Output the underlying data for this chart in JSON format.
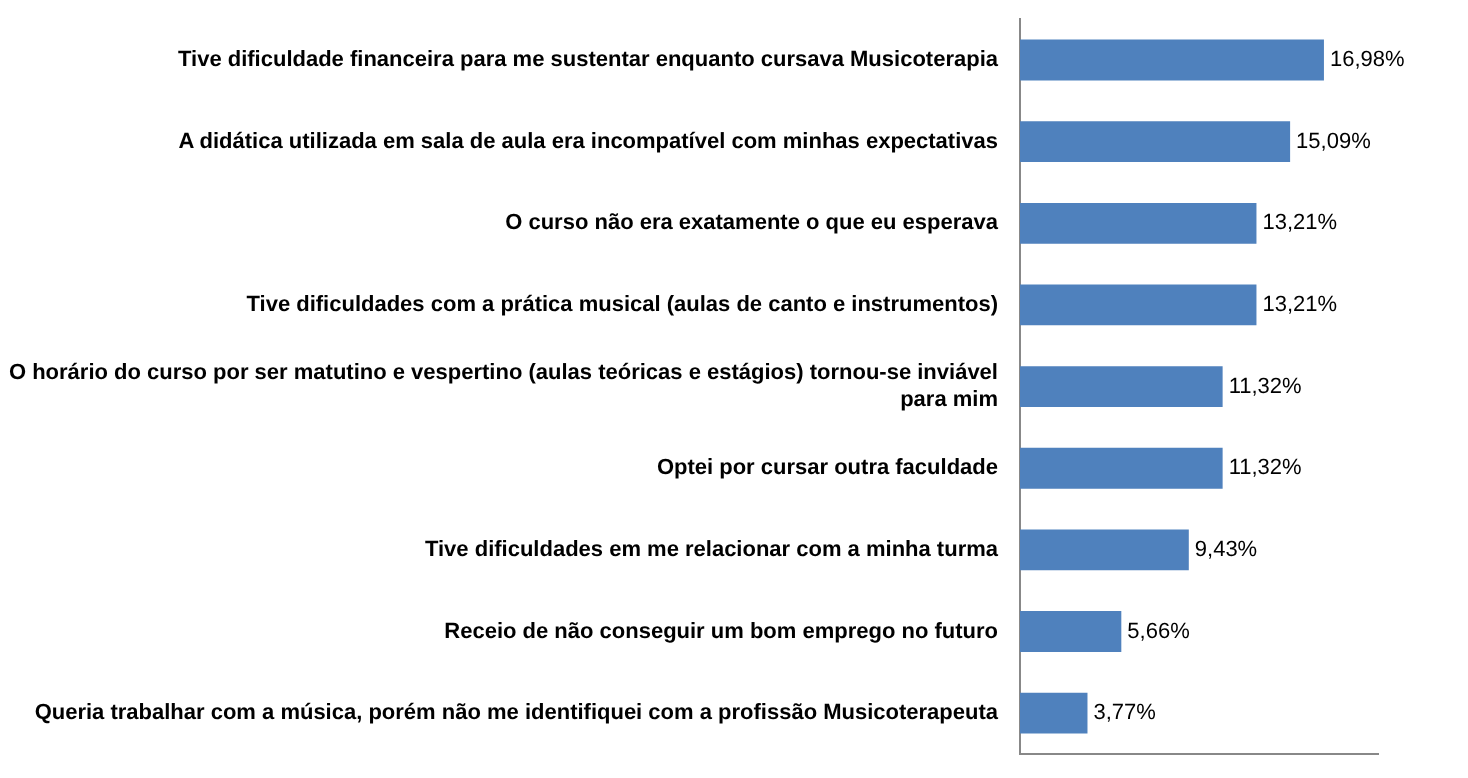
{
  "chart_data": {
    "type": "bar",
    "orientation": "horizontal",
    "relative": false,
    "categories": [
      "Tive dificuldade financeira para me sustentar enquanto cursava Musicoterapia",
      "A didática utilizada em sala de aula era incompatível com minhas expectativas",
      "O curso não era exatamente o que eu esperava",
      "Tive dificuldades com a prática musical (aulas de canto e instrumentos)",
      "O horário do curso por ser matutino e vespertino (aulas teóricas e estágios) tornou-se inviável para mim",
      "Optei por cursar outra faculdade",
      "Tive dificuldades em me relacionar com a minha turma",
      "Receio de não conseguir um bom emprego no futuro",
      "Queria trabalhar com a música, porém não me identifiquei com a profissão Musicoterapeuta"
    ],
    "values": [
      16.98,
      15.09,
      13.21,
      13.21,
      11.32,
      11.32,
      9.43,
      5.66,
      3.77
    ],
    "value_labels": [
      "16,98%",
      "15,09%",
      "13,21%",
      "13,21%",
      "11,32%",
      "11,32%",
      "9,43%",
      "5,66%",
      "3,77%"
    ],
    "color": "#4f81bd",
    "grid": false,
    "legend": false
  }
}
